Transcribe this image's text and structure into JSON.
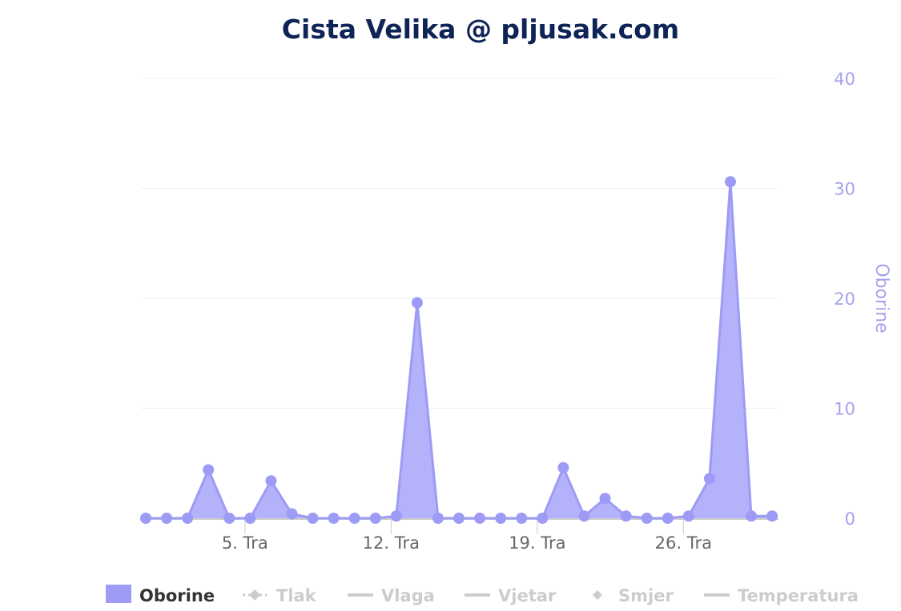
{
  "chart_data": {
    "type": "area",
    "title": "Cista Velika @ pljusak.com",
    "y_axis": {
      "title": "Oborine",
      "position": "right",
      "ticks": [
        "0",
        "10",
        "20",
        "30",
        "40"
      ],
      "min": 0,
      "max": 40
    },
    "x_axis": {
      "ticks": [
        "5. Tra",
        "12. Tra",
        "19. Tra",
        "26. Tra"
      ],
      "tick_days": [
        5,
        12,
        19,
        26
      ]
    },
    "grid": true,
    "x": [
      0,
      1,
      2,
      3,
      4,
      5,
      6,
      7,
      8,
      9,
      10,
      11,
      12,
      13,
      14,
      15,
      16,
      17,
      18,
      19,
      20,
      21,
      22,
      23,
      24,
      25,
      26,
      27,
      28,
      29,
      30
    ],
    "series": [
      {
        "name": "Oborine",
        "color": "#9d9bf5",
        "values": [
          0,
          0,
          0,
          4.4,
          0,
          0,
          3.4,
          0.4,
          0,
          0,
          0,
          0,
          0.2,
          19.6,
          0,
          0,
          0,
          0,
          0,
          0,
          4.6,
          0.2,
          1.8,
          0.2,
          0,
          0,
          0.2,
          3.6,
          30.6,
          0.2,
          0.2
        ]
      }
    ],
    "legend": {
      "placement": "bottom",
      "items": [
        {
          "label": "Oborine",
          "symbol": "area",
          "active": true
        },
        {
          "label": "Tlak",
          "symbol": "dashed-diamond",
          "active": false
        },
        {
          "label": "Vlaga",
          "symbol": "line",
          "active": false
        },
        {
          "label": "Vjetar",
          "symbol": "line",
          "active": false
        },
        {
          "label": "Smjer",
          "symbol": "diamond",
          "active": false
        },
        {
          "label": "Temperatura",
          "symbol": "line",
          "active": false
        }
      ]
    },
    "colors": {
      "title": "#0f2456",
      "area_fill": "#b0aefa",
      "line": "#9d9bf5",
      "axis_text": "#a5a2ec",
      "x_text": "#666666",
      "legend_active": "#333333",
      "legend_inactive": "#cccccc"
    }
  }
}
